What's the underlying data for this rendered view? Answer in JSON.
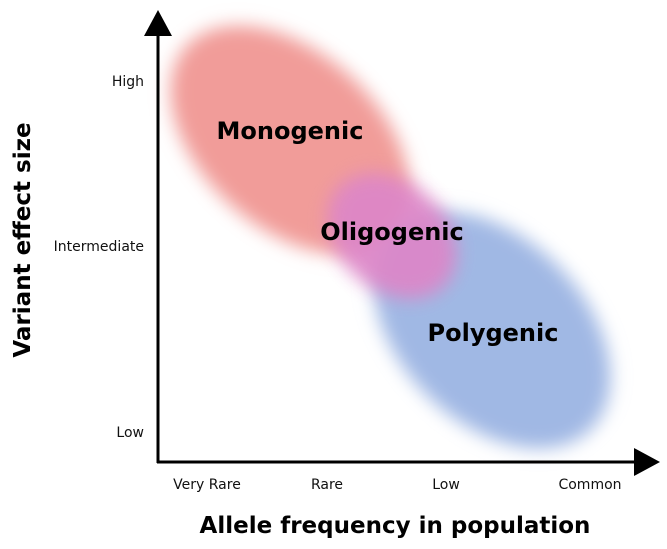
{
  "diagram": {
    "x_axis": {
      "title": "Allele frequency in population",
      "ticks": [
        "Very Rare",
        "Rare",
        "Low",
        "Common"
      ]
    },
    "y_axis": {
      "title": "Variant effect size",
      "ticks": [
        "Low",
        "Intermediate",
        "High"
      ]
    },
    "regions": [
      {
        "label": "Monogenic",
        "color": "#f19c99"
      },
      {
        "label": "Oligogenic",
        "color": "#dd86c8"
      },
      {
        "label": "Polygenic",
        "color": "#a0b8e4"
      }
    ]
  }
}
